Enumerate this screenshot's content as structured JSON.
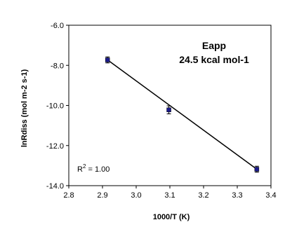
{
  "chart_data": {
    "type": "scatter",
    "xlabel": "1000/T (K)",
    "ylabel": "lnRdiss (mol m-2 s-1)",
    "xlim": [
      2.8,
      3.4
    ],
    "ylim": [
      -14.0,
      -6.0
    ],
    "x_ticks": [
      "2.8",
      "2.9",
      "3.0",
      "3.1",
      "3.2",
      "3.3",
      "3.4"
    ],
    "y_ticks": [
      "-6.0",
      "-8.0",
      "-10.0",
      "-12.0",
      "-14.0"
    ],
    "points": [
      {
        "x": 2.915,
        "y": -7.73,
        "err": 0.15
      },
      {
        "x": 3.097,
        "y": -10.22,
        "err": 0.2
      },
      {
        "x": 3.358,
        "y": -13.18,
        "err": 0.15
      }
    ],
    "fit_line": {
      "x": [
        2.915,
        3.358
      ],
      "y": [
        -7.73,
        -13.18
      ]
    },
    "annotation_title": "Eapp",
    "annotation_value": "24.5 kcal mol-1",
    "r_squared_prefix": "R",
    "r_squared_sup": "2",
    "r_squared_value": " = 1.00",
    "grid": false,
    "marker_color": "#1a1a8c",
    "line_color": "#000000"
  }
}
